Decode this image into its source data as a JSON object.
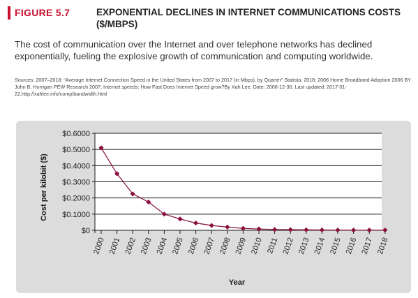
{
  "figure": {
    "label": "FIGURE 5.7",
    "title": "EXPONENTIAL DECLINES IN INTERNET COMMUNICATIONS COSTS ($/MBPS)",
    "caption": "The cost of communication over the Internet and over telephone networks has declined exponentially, fueling the explosive growth of communication and computing worldwide.",
    "sources": "Sources: 2007–2018: “Average Internet Connection Speed in the United States from 2007 to 2017 (in Mbps), by Quarter” Statista, 2018; 2006 Home Broadband Adoption 2006 BY John B. Horrigan PEW Research 2007; Internet speeds: How Fast Does Internet Speed grow?By Xah Lee. Date: 2006-12-30. Last updated: 2017-01-22,http://xahlee.info/comp/bandwidth.html"
  },
  "colors": {
    "label_accent": "#c8102e",
    "line": "#8b1a4a",
    "marker": "#8b0f3e",
    "panel_bg": "#dcdcdc"
  },
  "chart_data": {
    "type": "line",
    "xlabel": "Year",
    "ylabel": "Cost per kilobit ($)",
    "ylim": [
      0,
      0.6
    ],
    "yticks": [
      {
        "value": 0,
        "label": "$0"
      },
      {
        "value": 0.1,
        "label": "$0.1000"
      },
      {
        "value": 0.2,
        "label": "$0.2000"
      },
      {
        "value": 0.3,
        "label": "$0.3000"
      },
      {
        "value": 0.4,
        "label": "$0.4000"
      },
      {
        "value": 0.5,
        "label": "$0.5000"
      },
      {
        "value": 0.6,
        "label": "$0.6000"
      }
    ],
    "grid": "horizontal",
    "marker": "diamond",
    "x": [
      "2000",
      "2001",
      "2002",
      "2003",
      "2004",
      "2005",
      "2006",
      "2007",
      "2008",
      "2009",
      "2010",
      "2011",
      "2012",
      "2013",
      "2014",
      "2015",
      "2016",
      "2017",
      "2018"
    ],
    "values": [
      0.51,
      0.35,
      0.225,
      0.175,
      0.1,
      0.07,
      0.045,
      0.03,
      0.02,
      0.012,
      0.008,
      0.005,
      0.004,
      0.003,
      0.002,
      0.0015,
      0.001,
      0.001,
      0.001
    ]
  }
}
